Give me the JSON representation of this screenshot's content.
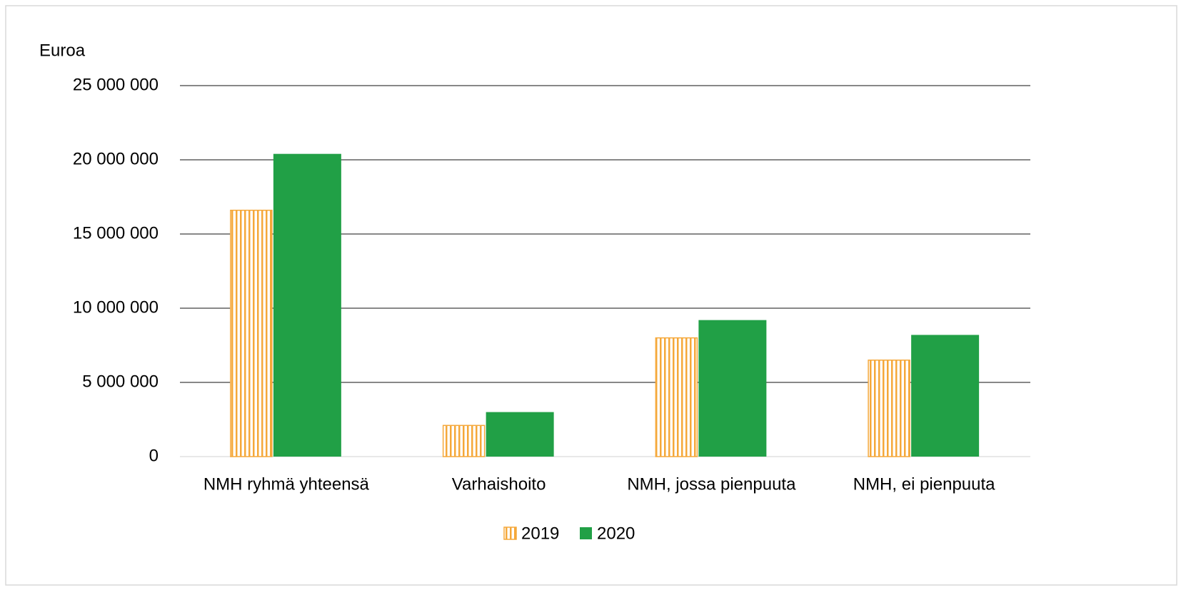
{
  "chart_data": {
    "type": "bar",
    "y_axis_label": "Euroa",
    "categories": [
      "NMH ryhmä yhteensä",
      "Varhaishoito",
      "NMH, jossa pienpuuta",
      "NMH, ei pienpuuta"
    ],
    "series": [
      {
        "name": "2019",
        "color": "#f5a83a",
        "pattern": "vertical-hatch",
        "values": [
          16600000,
          2100000,
          8000000,
          6500000
        ]
      },
      {
        "name": "2020",
        "color": "#21a046",
        "values": [
          20400000,
          3000000,
          9200000,
          8200000
        ]
      }
    ],
    "ylim": [
      0,
      25000000
    ],
    "yticks": [
      0,
      {
        "value": 5000000,
        "label": "5 000 000"
      },
      {
        "value": 10000000,
        "label": "10 000 000"
      },
      {
        "value": 15000000,
        "label": "15 000 000"
      },
      {
        "value": 20000000,
        "label": "20 000 000"
      },
      {
        "value": 25000000,
        "label": "25 000 000"
      }
    ],
    "grid": true,
    "legend": "bottom"
  }
}
